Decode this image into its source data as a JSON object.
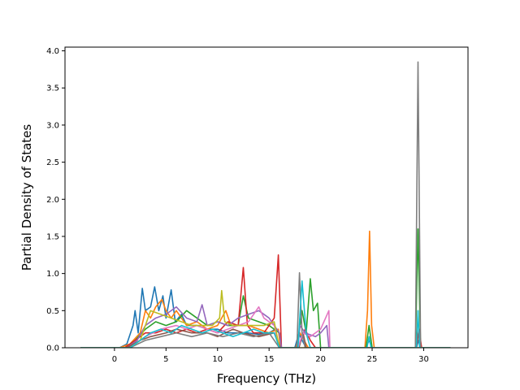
{
  "chart_data": {
    "type": "line",
    "title": "",
    "xlabel": "Frequency (THz)",
    "ylabel": "Partial Density of States",
    "xlim": [
      -4.8,
      34.3
    ],
    "ylim": [
      0.0,
      4.05
    ],
    "xticks": [
      0,
      5,
      10,
      15,
      20,
      25,
      30
    ],
    "yticks": [
      0.0,
      0.5,
      1.0,
      1.5,
      2.0,
      2.5,
      3.0,
      3.5,
      4.0
    ],
    "xtick_labels": [
      "0",
      "5",
      "10",
      "15",
      "20",
      "25",
      "30"
    ],
    "ytick_labels": [
      "0.0",
      "0.5",
      "1.0",
      "1.5",
      "2.0",
      "2.5",
      "3.0",
      "3.5",
      "4.0"
    ],
    "grid": false,
    "legend": "none",
    "series": [
      {
        "color": "#1f77b4",
        "points": [
          [
            -3.3,
            0
          ],
          [
            0.5,
            0
          ],
          [
            1.2,
            0.05
          ],
          [
            1.8,
            0.3
          ],
          [
            2.0,
            0.5
          ],
          [
            2.3,
            0.2
          ],
          [
            2.7,
            0.8
          ],
          [
            3.0,
            0.5
          ],
          [
            3.5,
            0.55
          ],
          [
            3.9,
            0.82
          ],
          [
            4.3,
            0.5
          ],
          [
            4.7,
            0.7
          ],
          [
            5.0,
            0.4
          ],
          [
            5.5,
            0.78
          ],
          [
            5.9,
            0.35
          ],
          [
            6.5,
            0.45
          ],
          [
            7.0,
            0.3
          ],
          [
            8.0,
            0.3
          ],
          [
            9.0,
            0.25
          ],
          [
            10.0,
            0.25
          ],
          [
            11.0,
            0.2
          ],
          [
            12.0,
            0.2
          ],
          [
            13.0,
            0.2
          ],
          [
            14.0,
            0.18
          ],
          [
            15.0,
            0.2
          ],
          [
            15.6,
            0.25
          ],
          [
            16.0,
            0
          ],
          [
            17.5,
            0
          ],
          [
            17.9,
            0.2
          ],
          [
            18.2,
            0.1
          ],
          [
            18.6,
            0
          ],
          [
            24.4,
            0
          ],
          [
            24.7,
            0.1
          ],
          [
            25.0,
            0
          ],
          [
            29.3,
            0
          ],
          [
            29.5,
            0.1
          ],
          [
            29.7,
            0
          ],
          [
            32.6,
            0
          ]
        ]
      },
      {
        "color": "#ff7f0e",
        "points": [
          [
            -3.3,
            0
          ],
          [
            0.5,
            0
          ],
          [
            1.5,
            0.05
          ],
          [
            2.5,
            0.2
          ],
          [
            3.0,
            0.5
          ],
          [
            3.5,
            0.4
          ],
          [
            4.0,
            0.55
          ],
          [
            4.6,
            0.65
          ],
          [
            5.0,
            0.5
          ],
          [
            5.5,
            0.4
          ],
          [
            6.0,
            0.5
          ],
          [
            7.0,
            0.3
          ],
          [
            8.0,
            0.35
          ],
          [
            9.0,
            0.25
          ],
          [
            10.0,
            0.3
          ],
          [
            10.8,
            0.5
          ],
          [
            11.3,
            0.3
          ],
          [
            12.0,
            0.3
          ],
          [
            13.0,
            0.3
          ],
          [
            14.0,
            0.25
          ],
          [
            15.0,
            0.2
          ],
          [
            15.9,
            0.25
          ],
          [
            16.1,
            0
          ],
          [
            17.6,
            0
          ],
          [
            18.0,
            0.2
          ],
          [
            18.4,
            0.1
          ],
          [
            18.8,
            0
          ],
          [
            24.3,
            0
          ],
          [
            24.55,
            0.5
          ],
          [
            24.75,
            1.57
          ],
          [
            24.95,
            0.3
          ],
          [
            25.2,
            0
          ],
          [
            29.2,
            0
          ],
          [
            29.5,
            0.2
          ],
          [
            29.8,
            0
          ],
          [
            32.6,
            0
          ]
        ]
      },
      {
        "color": "#2ca02c",
        "points": [
          [
            -3.3,
            0
          ],
          [
            1.0,
            0
          ],
          [
            2.0,
            0.1
          ],
          [
            3.0,
            0.25
          ],
          [
            4.0,
            0.35
          ],
          [
            5.0,
            0.3
          ],
          [
            6.0,
            0.35
          ],
          [
            7.0,
            0.5
          ],
          [
            8.0,
            0.4
          ],
          [
            9.0,
            0.3
          ],
          [
            10.0,
            0.35
          ],
          [
            11.0,
            0.3
          ],
          [
            12.0,
            0.3
          ],
          [
            12.5,
            0.7
          ],
          [
            13.0,
            0.4
          ],
          [
            14.0,
            0.35
          ],
          [
            15.0,
            0.3
          ],
          [
            16.0,
            0.2
          ],
          [
            16.2,
            0
          ],
          [
            17.7,
            0
          ],
          [
            18.2,
            0.5
          ],
          [
            18.6,
            0.2
          ],
          [
            19.0,
            0.93
          ],
          [
            19.3,
            0.5
          ],
          [
            19.7,
            0.6
          ],
          [
            20.0,
            0
          ],
          [
            24.4,
            0
          ],
          [
            24.7,
            0.3
          ],
          [
            25.0,
            0
          ],
          [
            29.2,
            0
          ],
          [
            29.45,
            1.6
          ],
          [
            29.7,
            0
          ],
          [
            32.6,
            0
          ]
        ]
      },
      {
        "color": "#d62728",
        "points": [
          [
            -3.3,
            0
          ],
          [
            1.0,
            0
          ],
          [
            2.0,
            0.1
          ],
          [
            3.0,
            0.2
          ],
          [
            4.0,
            0.2
          ],
          [
            5.0,
            0.25
          ],
          [
            6.0,
            0.2
          ],
          [
            7.0,
            0.25
          ],
          [
            8.0,
            0.2
          ],
          [
            9.0,
            0.25
          ],
          [
            10.0,
            0.2
          ],
          [
            11.0,
            0.35
          ],
          [
            12.0,
            0.3
          ],
          [
            12.5,
            1.08
          ],
          [
            12.9,
            0.3
          ],
          [
            13.5,
            0.2
          ],
          [
            14.5,
            0.2
          ],
          [
            15.5,
            0.4
          ],
          [
            15.9,
            1.25
          ],
          [
            16.2,
            0
          ],
          [
            17.8,
            0
          ],
          [
            18.5,
            0.25
          ],
          [
            19.0,
            0.1
          ],
          [
            19.5,
            0
          ],
          [
            29.3,
            0
          ],
          [
            29.55,
            0.25
          ],
          [
            29.8,
            0
          ],
          [
            32.6,
            0
          ]
        ]
      },
      {
        "color": "#9467bd",
        "points": [
          [
            -3.3,
            0
          ],
          [
            1.2,
            0
          ],
          [
            2.2,
            0.1
          ],
          [
            3.0,
            0.3
          ],
          [
            4.0,
            0.4
          ],
          [
            5.0,
            0.45
          ],
          [
            6.0,
            0.55
          ],
          [
            7.0,
            0.4
          ],
          [
            8.0,
            0.35
          ],
          [
            8.5,
            0.58
          ],
          [
            9.0,
            0.3
          ],
          [
            10.0,
            0.35
          ],
          [
            11.0,
            0.3
          ],
          [
            12.0,
            0.4
          ],
          [
            13.0,
            0.45
          ],
          [
            14.0,
            0.5
          ],
          [
            15.0,
            0.4
          ],
          [
            16.0,
            0.2
          ],
          [
            16.2,
            0
          ],
          [
            17.8,
            0
          ],
          [
            18.0,
            0.3
          ],
          [
            18.5,
            0.2
          ],
          [
            19.5,
            0.15
          ],
          [
            20.0,
            0.2
          ],
          [
            20.6,
            0.3
          ],
          [
            20.8,
            0
          ],
          [
            32.6,
            0
          ]
        ]
      },
      {
        "color": "#8c564b",
        "points": [
          [
            -3.3,
            0
          ],
          [
            1.2,
            0
          ],
          [
            2.5,
            0.1
          ],
          [
            3.5,
            0.15
          ],
          [
            5.0,
            0.2
          ],
          [
            6.0,
            0.25
          ],
          [
            7.5,
            0.2
          ],
          [
            9.0,
            0.2
          ],
          [
            10.0,
            0.15
          ],
          [
            11.5,
            0.25
          ],
          [
            12.5,
            0.2
          ],
          [
            14.0,
            0.15
          ],
          [
            15.5,
            0.2
          ],
          [
            16.1,
            0
          ],
          [
            17.9,
            0
          ],
          [
            18.3,
            0.2
          ],
          [
            18.6,
            0
          ],
          [
            32.6,
            0
          ]
        ]
      },
      {
        "color": "#e377c2",
        "points": [
          [
            -3.3,
            0
          ],
          [
            1.5,
            0
          ],
          [
            3.0,
            0.15
          ],
          [
            4.5,
            0.25
          ],
          [
            6.0,
            0.3
          ],
          [
            7.0,
            0.25
          ],
          [
            8.0,
            0.3
          ],
          [
            9.0,
            0.25
          ],
          [
            10.0,
            0.2
          ],
          [
            11.0,
            0.25
          ],
          [
            12.0,
            0.3
          ],
          [
            13.0,
            0.35
          ],
          [
            14.0,
            0.55
          ],
          [
            14.5,
            0.4
          ],
          [
            15.5,
            0.3
          ],
          [
            16.0,
            0
          ],
          [
            17.8,
            0
          ],
          [
            18.3,
            0.2
          ],
          [
            19.0,
            0.15
          ],
          [
            20.0,
            0.25
          ],
          [
            20.8,
            0.5
          ],
          [
            20.9,
            0
          ],
          [
            32.6,
            0
          ]
        ]
      },
      {
        "color": "#7f7f7f",
        "points": [
          [
            -3.3,
            0
          ],
          [
            1.5,
            0
          ],
          [
            3.0,
            0.1
          ],
          [
            4.5,
            0.15
          ],
          [
            6.0,
            0.2
          ],
          [
            7.5,
            0.15
          ],
          [
            9.0,
            0.2
          ],
          [
            10.5,
            0.15
          ],
          [
            12.0,
            0.2
          ],
          [
            13.5,
            0.15
          ],
          [
            15.0,
            0.2
          ],
          [
            16.0,
            0
          ],
          [
            17.7,
            0
          ],
          [
            17.95,
            1.01
          ],
          [
            18.2,
            0.2
          ],
          [
            18.5,
            0
          ],
          [
            29.2,
            0
          ],
          [
            29.45,
            3.85
          ],
          [
            29.7,
            0
          ],
          [
            32.6,
            0
          ]
        ]
      },
      {
        "color": "#bcbd22",
        "points": [
          [
            -3.3,
            0
          ],
          [
            1.5,
            0
          ],
          [
            2.5,
            0.1
          ],
          [
            3.5,
            0.5
          ],
          [
            4.5,
            0.45
          ],
          [
            5.5,
            0.4
          ],
          [
            6.5,
            0.35
          ],
          [
            7.5,
            0.3
          ],
          [
            8.5,
            0.3
          ],
          [
            9.5,
            0.3
          ],
          [
            10.2,
            0.4
          ],
          [
            10.4,
            0.77
          ],
          [
            10.7,
            0.35
          ],
          [
            11.5,
            0.3
          ],
          [
            12.5,
            0.3
          ],
          [
            13.5,
            0.3
          ],
          [
            14.5,
            0.3
          ],
          [
            15.5,
            0.35
          ],
          [
            16.0,
            0
          ],
          [
            32.6,
            0
          ]
        ]
      },
      {
        "color": "#17becf",
        "points": [
          [
            -3.3,
            0
          ],
          [
            1.5,
            0
          ],
          [
            2.5,
            0.1
          ],
          [
            3.5,
            0.2
          ],
          [
            4.5,
            0.25
          ],
          [
            5.5,
            0.2
          ],
          [
            6.5,
            0.3
          ],
          [
            7.5,
            0.25
          ],
          [
            8.5,
            0.2
          ],
          [
            9.5,
            0.25
          ],
          [
            10.5,
            0.2
          ],
          [
            11.5,
            0.15
          ],
          [
            12.5,
            0.2
          ],
          [
            13.5,
            0.25
          ],
          [
            14.5,
            0.2
          ],
          [
            15.5,
            0.2
          ],
          [
            16.0,
            0
          ],
          [
            17.8,
            0
          ],
          [
            18.2,
            0.9
          ],
          [
            18.6,
            0.2
          ],
          [
            19.0,
            0
          ],
          [
            24.5,
            0
          ],
          [
            24.7,
            0.15
          ],
          [
            24.9,
            0
          ],
          [
            29.3,
            0
          ],
          [
            29.45,
            0.5
          ],
          [
            29.6,
            0
          ],
          [
            32.6,
            0
          ]
        ]
      }
    ]
  }
}
